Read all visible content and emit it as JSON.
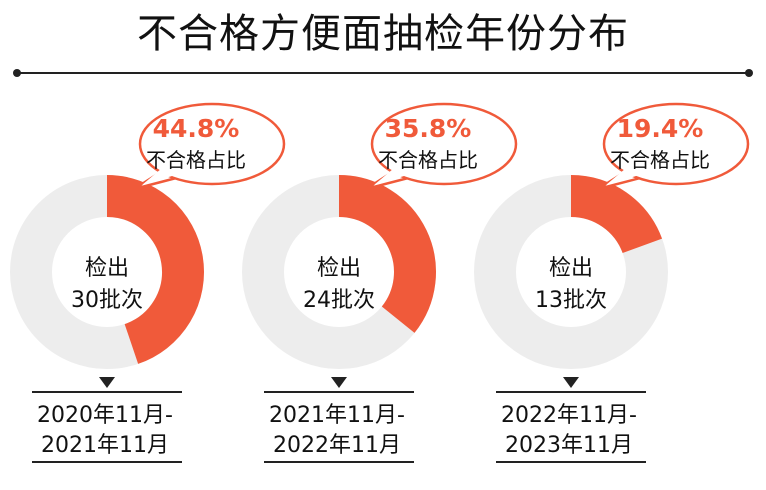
{
  "title": "不合格方便面抽检年份分布",
  "colors": {
    "accent": "#f05a3a",
    "track": "#ededed",
    "bubble_fill": "#ffffff",
    "bubble_stroke": "#f05a3a",
    "line": "#222222"
  },
  "chart_data": [
    {
      "type": "pie",
      "variant": "donut",
      "slices": [
        {
          "label": "不合格占比",
          "value": 44.8
        },
        {
          "label": "",
          "value": 55.2
        }
      ],
      "percent_label": "44.8%",
      "caption": "不合格占比",
      "center": {
        "line1": "检出",
        "line2": "30批次"
      },
      "period": {
        "line1": "2020年11月-",
        "line2": "2021年11月"
      }
    },
    {
      "type": "pie",
      "variant": "donut",
      "slices": [
        {
          "label": "不合格占比",
          "value": 35.8
        },
        {
          "label": "",
          "value": 64.2
        }
      ],
      "percent_label": "35.8%",
      "caption": "不合格占比",
      "center": {
        "line1": "检出",
        "line2": "24批次"
      },
      "period": {
        "line1": "2021年11月-",
        "line2": "2022年11月"
      }
    },
    {
      "type": "pie",
      "variant": "donut",
      "slices": [
        {
          "label": "不合格占比",
          "value": 19.4
        },
        {
          "label": "",
          "value": 80.6
        }
      ],
      "percent_label": "19.4%",
      "caption": "不合格占比",
      "center": {
        "line1": "检出",
        "line2": "13批次"
      },
      "period": {
        "line1": "2022年11月-",
        "line2": "2023年11月"
      }
    }
  ]
}
